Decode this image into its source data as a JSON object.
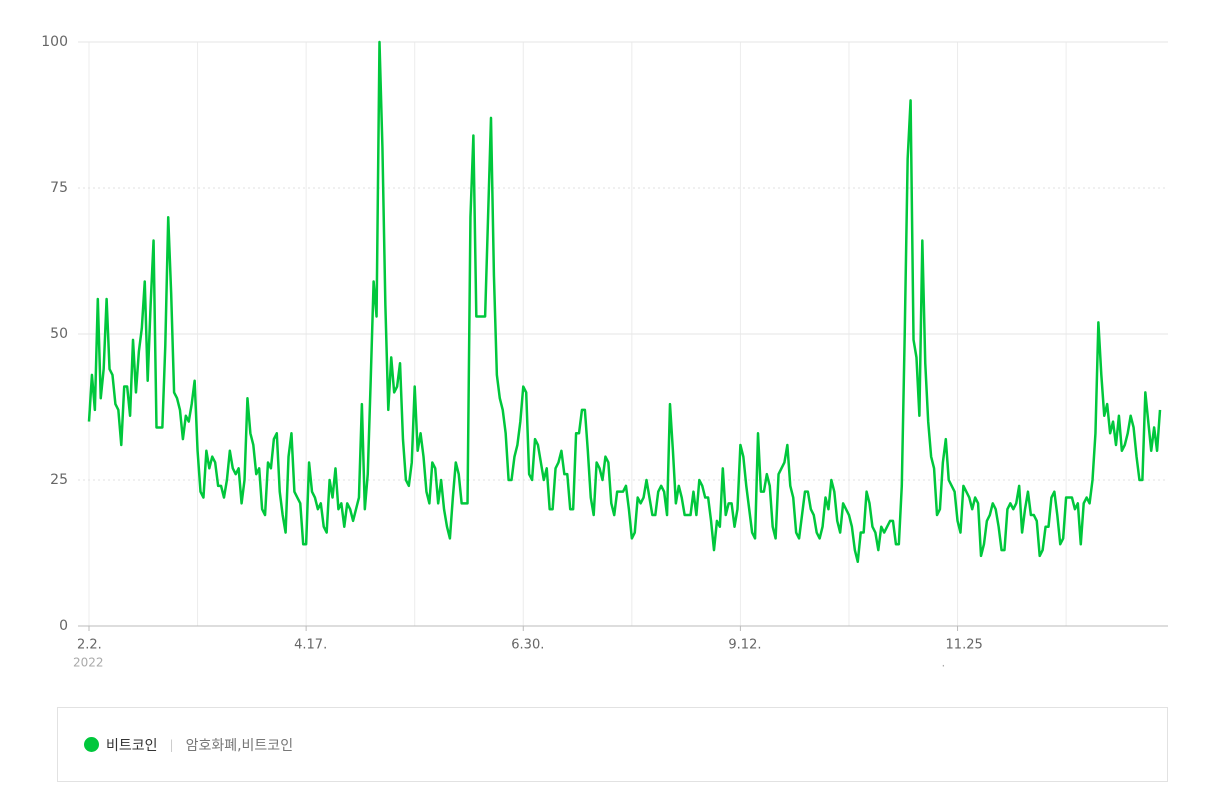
{
  "chart_data": {
    "type": "line",
    "categories": [
      "2.2.",
      null,
      null,
      null,
      null,
      null,
      null,
      null,
      null,
      null,
      null,
      null,
      null,
      null,
      null,
      null,
      null,
      null,
      null,
      null,
      null,
      null,
      null,
      null,
      null,
      null,
      null,
      null,
      null,
      null,
      null,
      null,
      null,
      null,
      null,
      null,
      null,
      null,
      null,
      null,
      null,
      null,
      null,
      null,
      null,
      null,
      null,
      null,
      null,
      null,
      null,
      null,
      null,
      null,
      null,
      null,
      null,
      null,
      null,
      null,
      null,
      null,
      null,
      null,
      null,
      null,
      null,
      null,
      null,
      null,
      null,
      null,
      null,
      null,
      "4.17.",
      null,
      null,
      null,
      null,
      null,
      null,
      null,
      null,
      null,
      null,
      null,
      null,
      null,
      null,
      null,
      null,
      null,
      null,
      null,
      null,
      null,
      null,
      null,
      null,
      null,
      null,
      null,
      null,
      null,
      null,
      null,
      null,
      null,
      null,
      null,
      null,
      null,
      null,
      null,
      null,
      null,
      null,
      null,
      null,
      null,
      null,
      null,
      null,
      null,
      null,
      null,
      null,
      null,
      null,
      null,
      null,
      null,
      null,
      null,
      null,
      null,
      null,
      null,
      null,
      null,
      null,
      null,
      null,
      null,
      null,
      null,
      null,
      null,
      "6.30.",
      null,
      null,
      null,
      null,
      null,
      null,
      null,
      null,
      null,
      null,
      null,
      null,
      null,
      null,
      null,
      null,
      null,
      null,
      null,
      null,
      null,
      null,
      null,
      null,
      null,
      null,
      null,
      null,
      null,
      null,
      null,
      null,
      null,
      null,
      null,
      null,
      null,
      null,
      null,
      null,
      null,
      null,
      null,
      null,
      null,
      null,
      null,
      null,
      null,
      null,
      null,
      null,
      null,
      null,
      null,
      null,
      null,
      null,
      null,
      null,
      null,
      null,
      null,
      null,
      null,
      null,
      null,
      null,
      null,
      null,
      null,
      null,
      null,
      "9.12.",
      null,
      null,
      null,
      null,
      null,
      null,
      null,
      null,
      null,
      null,
      null,
      null,
      null,
      null,
      null,
      null,
      null,
      null,
      null,
      null,
      null,
      null,
      null,
      null,
      null,
      null,
      null,
      null,
      null,
      null,
      null,
      null,
      null,
      null,
      null,
      null,
      null,
      null,
      null,
      null,
      null,
      null,
      null,
      null,
      null,
      null,
      null,
      null,
      null,
      null,
      null,
      null,
      null,
      null,
      null,
      null,
      null,
      null,
      null,
      null,
      null,
      null,
      null,
      null,
      null,
      null,
      null,
      null,
      null,
      null,
      null,
      null,
      null,
      "11.25",
      null,
      null,
      null,
      null,
      null,
      null,
      null,
      null,
      null,
      null,
      null,
      null,
      null,
      null,
      null,
      null,
      null,
      null,
      null,
      null,
      null,
      null,
      null,
      null,
      null,
      null,
      null,
      null,
      null,
      null,
      null,
      null,
      null,
      null,
      null,
      null,
      null,
      null,
      null,
      null,
      null,
      null,
      null,
      null,
      null,
      null,
      null,
      null,
      null,
      null,
      null,
      null,
      null,
      null,
      null,
      null,
      null,
      null,
      null,
      null,
      null,
      null,
      null,
      null,
      null,
      null,
      null,
      null,
      null
    ],
    "xtick_sublabels": [
      "2022",
      null,
      null,
      null,
      "."
    ],
    "series": [
      {
        "name": "비트코인",
        "keywords": "암호화폐,비트코인",
        "color": "#00c73c",
        "values": [
          35,
          43,
          37,
          56,
          39,
          44,
          56,
          44,
          43,
          38,
          37,
          31,
          41,
          41,
          36,
          49,
          40,
          47,
          51,
          59,
          42,
          55,
          66,
          34,
          34,
          34,
          48,
          70,
          57,
          40,
          39,
          37,
          32,
          36,
          35,
          38,
          42,
          30,
          23,
          22,
          30,
          27,
          29,
          28,
          24,
          24,
          22,
          25,
          30,
          27,
          26,
          27,
          21,
          25,
          39,
          33,
          31,
          26,
          27,
          20,
          19,
          28,
          27,
          32,
          33,
          23,
          19,
          16,
          29,
          33,
          23,
          22,
          21,
          14,
          14,
          28,
          23,
          22,
          20,
          21,
          17,
          16,
          25,
          22,
          27,
          20,
          21,
          17,
          21,
          20,
          18,
          20,
          22,
          38,
          20,
          26,
          42,
          59,
          53,
          100,
          82,
          55,
          37,
          46,
          40,
          41,
          45,
          32,
          25,
          24,
          28,
          41,
          30,
          33,
          29,
          23,
          21,
          28,
          27,
          21,
          25,
          20,
          17,
          15,
          22,
          28,
          26,
          21,
          21,
          21,
          70,
          84,
          53,
          53,
          53,
          53,
          70,
          87,
          60,
          43,
          39,
          37,
          33,
          25,
          25,
          29,
          31,
          35,
          41,
          40,
          26,
          25,
          32,
          31,
          28,
          25,
          27,
          20,
          20,
          27,
          28,
          30,
          26,
          26,
          20,
          20,
          33,
          33,
          37,
          37,
          30,
          22,
          19,
          28,
          27,
          25,
          29,
          28,
          21,
          19,
          23,
          23,
          23,
          24,
          20,
          15,
          16,
          22,
          21,
          22,
          25,
          22,
          19,
          19,
          23,
          24,
          23,
          19,
          38,
          30,
          21,
          24,
          22,
          19,
          19,
          19,
          23,
          19,
          25,
          24,
          22,
          22,
          18,
          13,
          18,
          17,
          27,
          19,
          21,
          21,
          17,
          20,
          31,
          29,
          24,
          20,
          16,
          15,
          33,
          23,
          23,
          26,
          24,
          17,
          15,
          26,
          27,
          28,
          31,
          24,
          22,
          16,
          15,
          19,
          23,
          23,
          20,
          19,
          16,
          15,
          17,
          22,
          20,
          25,
          23,
          18,
          16,
          21,
          20,
          19,
          17,
          13,
          11,
          16,
          16,
          23,
          21,
          17,
          16,
          13,
          17,
          16,
          17,
          18,
          18,
          14,
          14,
          24,
          50,
          80,
          90,
          49,
          46,
          36,
          66,
          45,
          35,
          29,
          27,
          19,
          20,
          28,
          32,
          25,
          24,
          23,
          18,
          16,
          24,
          23,
          22,
          20,
          22,
          21,
          12,
          14,
          18,
          19,
          21,
          20,
          17,
          13,
          13,
          20,
          21,
          20,
          21,
          24,
          16,
          20,
          23,
          19,
          19,
          18,
          12,
          13,
          17,
          17,
          22,
          23,
          19,
          14,
          15,
          22,
          22,
          22,
          20,
          21,
          14,
          21,
          22,
          21,
          25,
          33,
          52,
          43,
          36,
          38,
          33,
          35,
          31,
          36,
          30,
          31,
          33,
          36,
          34,
          29,
          25,
          25,
          40,
          35,
          30,
          34,
          30,
          37
        ]
      }
    ],
    "ylim": [
      0,
      100
    ],
    "yticks": [
      0,
      25,
      50,
      75,
      100
    ],
    "grid": true
  }
}
